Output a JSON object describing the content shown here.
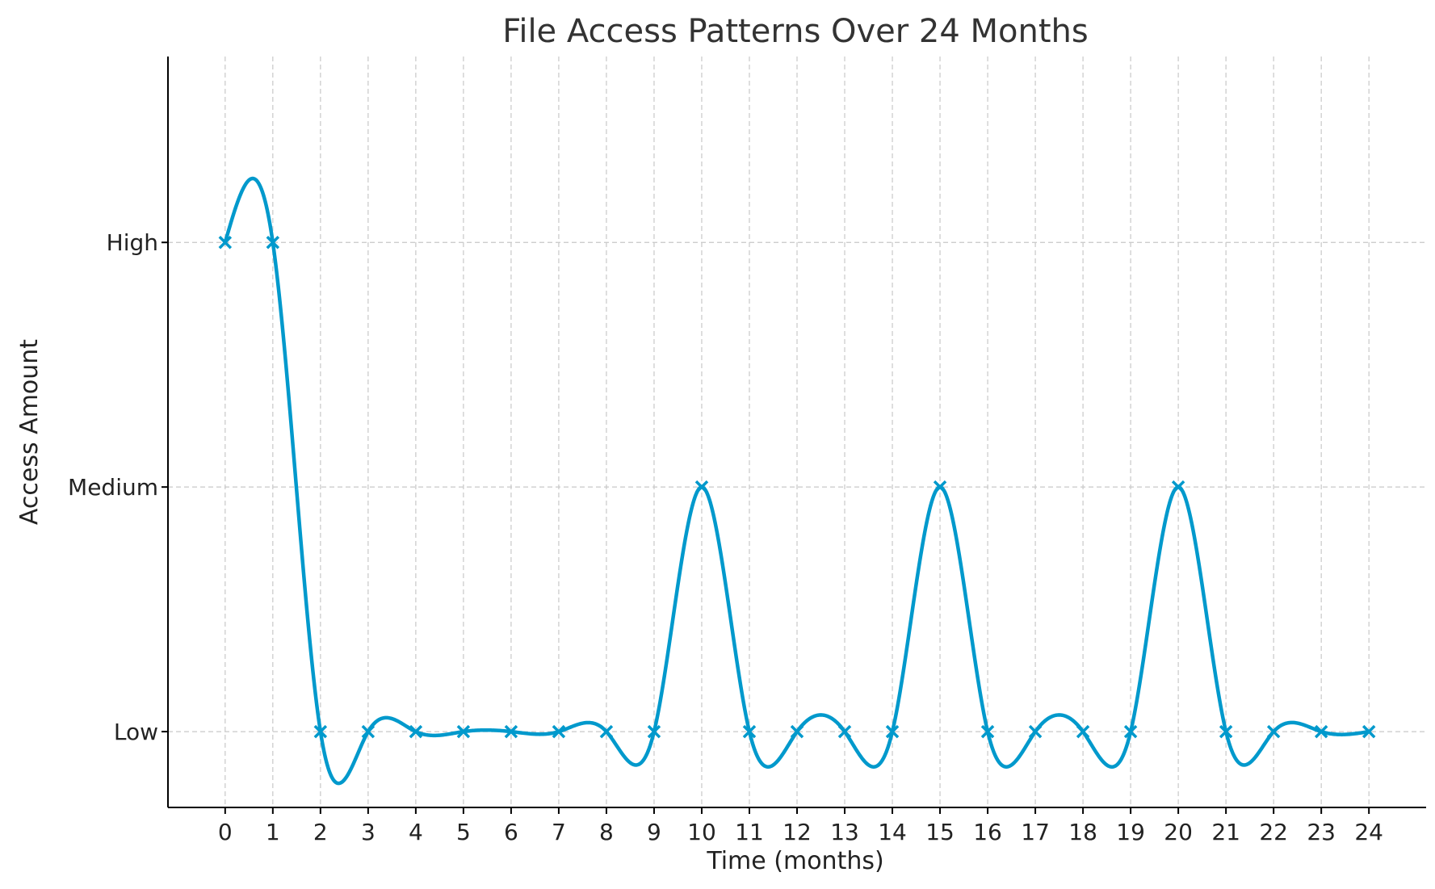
{
  "chart_data": {
    "type": "line",
    "title": "File Access Patterns Over 24 Months",
    "xlabel": "Time (months)",
    "ylabel": "Access Amount",
    "x": [
      0,
      1,
      2,
      3,
      4,
      5,
      6,
      7,
      8,
      9,
      10,
      11,
      12,
      13,
      14,
      15,
      16,
      17,
      18,
      19,
      20,
      21,
      22,
      23,
      24
    ],
    "y": [
      3,
      3,
      1,
      1,
      1,
      1,
      1,
      1,
      1,
      1,
      2,
      1,
      1,
      1,
      1,
      2,
      1,
      1,
      1,
      1,
      2,
      1,
      1,
      1,
      1
    ],
    "y_tick_values": [
      1,
      2,
      3
    ],
    "y_tick_labels": [
      "Low",
      "Medium",
      "High"
    ],
    "xlim": [
      -1.2,
      25.2
    ],
    "ylim": [
      0.69,
      3.76
    ],
    "grid": true,
    "marker": "x",
    "smoothed": true,
    "line_color": "#0099cc"
  }
}
